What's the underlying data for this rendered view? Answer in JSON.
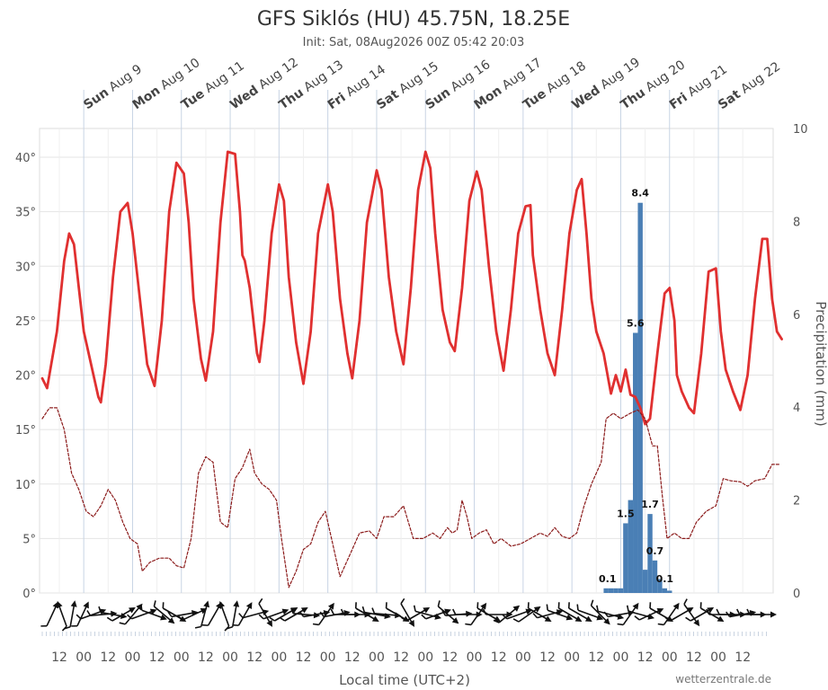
{
  "chart_data": {
    "type": "line",
    "title": "GFS Siklós (HU) 45.75N, 18.25E",
    "subtitle": "Init: Sat, 08Aug2026 00Z 05:42 20:03",
    "xlabel": "Local time (UTC+2)",
    "ylabel_right": "Precipitation (mm)",
    "credit": "wetterzentrale.de",
    "y_left": {
      "range": [
        0,
        42
      ],
      "ticks": [
        "0°",
        "5°",
        "10°",
        "15°",
        "20°",
        "25°",
        "30°",
        "35°",
        "40°"
      ]
    },
    "y_right": {
      "range": [
        0,
        10
      ],
      "ticks": [
        "0",
        "2",
        "4",
        "6",
        "8",
        "10"
      ]
    },
    "days": [
      {
        "dow": "Sun",
        "date": "Aug 9"
      },
      {
        "dow": "Mon",
        "date": "Aug 10"
      },
      {
        "dow": "Tue",
        "date": "Aug 11"
      },
      {
        "dow": "Wed",
        "date": "Aug 12"
      },
      {
        "dow": "Thu",
        "date": "Aug 13"
      },
      {
        "dow": "Fri",
        "date": "Aug 14"
      },
      {
        "dow": "Sat",
        "date": "Aug 15"
      },
      {
        "dow": "Sun",
        "date": "Aug 16"
      },
      {
        "dow": "Mon",
        "date": "Aug 17"
      },
      {
        "dow": "Tue",
        "date": "Aug 18"
      },
      {
        "dow": "Wed",
        "date": "Aug 19"
      },
      {
        "dow": "Thu",
        "date": "Aug 20"
      },
      {
        "dow": "Fri",
        "date": "Aug 21"
      },
      {
        "dow": "Sat",
        "date": "Aug 22"
      }
    ],
    "x_ticks": [
      "12",
      "00",
      "12",
      "00",
      "12",
      "00",
      "12",
      "00",
      "12",
      "00",
      "12",
      "00",
      "12",
      "00",
      "12",
      "00",
      "12",
      "00",
      "12",
      "00",
      "12",
      "00",
      "12",
      "00",
      "12",
      "00",
      "12",
      "00",
      "12"
    ],
    "series": [
      {
        "name": "Temperature",
        "color": "#e03030",
        "style": "solid",
        "points": [
          [
            0.0,
            19.7
          ],
          [
            0.1,
            18.8
          ],
          [
            0.3,
            24
          ],
          [
            0.45,
            30.5
          ],
          [
            0.55,
            33
          ],
          [
            0.65,
            32
          ],
          [
            0.75,
            28
          ],
          [
            0.85,
            24
          ],
          [
            1.0,
            21
          ],
          [
            1.15,
            18
          ],
          [
            1.2,
            17.5
          ],
          [
            1.3,
            21
          ],
          [
            1.45,
            29
          ],
          [
            1.6,
            35
          ],
          [
            1.75,
            35.8
          ],
          [
            1.85,
            33
          ],
          [
            2.0,
            27
          ],
          [
            2.15,
            21
          ],
          [
            2.3,
            19
          ],
          [
            2.45,
            25
          ],
          [
            2.6,
            35
          ],
          [
            2.75,
            39.5
          ],
          [
            2.9,
            38.5
          ],
          [
            3.0,
            34
          ],
          [
            3.1,
            27
          ],
          [
            3.25,
            21.5
          ],
          [
            3.35,
            19.5
          ],
          [
            3.5,
            24
          ],
          [
            3.65,
            34
          ],
          [
            3.8,
            40.5
          ],
          [
            3.95,
            40.3
          ],
          [
            4.05,
            35
          ],
          [
            4.1,
            31
          ],
          [
            4.15,
            30.5
          ],
          [
            4.25,
            28
          ],
          [
            4.4,
            22
          ],
          [
            4.45,
            21.2
          ],
          [
            4.55,
            25
          ],
          [
            4.7,
            33
          ],
          [
            4.85,
            37.5
          ],
          [
            4.95,
            36
          ],
          [
            5.05,
            29
          ],
          [
            5.2,
            23
          ],
          [
            5.35,
            19.2
          ],
          [
            5.5,
            24
          ],
          [
            5.65,
            33
          ],
          [
            5.85,
            37.5
          ],
          [
            5.95,
            35
          ],
          [
            6.1,
            27
          ],
          [
            6.25,
            22
          ],
          [
            6.35,
            19.7
          ],
          [
            6.5,
            25
          ],
          [
            6.65,
            34
          ],
          [
            6.85,
            38.8
          ],
          [
            6.95,
            37
          ],
          [
            7.1,
            29
          ],
          [
            7.25,
            24
          ],
          [
            7.4,
            21
          ],
          [
            7.55,
            28
          ],
          [
            7.7,
            37
          ],
          [
            7.85,
            40.5
          ],
          [
            7.95,
            39
          ],
          [
            8.05,
            33
          ],
          [
            8.2,
            26
          ],
          [
            8.35,
            23
          ],
          [
            8.45,
            22.2
          ],
          [
            8.6,
            28
          ],
          [
            8.75,
            36
          ],
          [
            8.9,
            38.7
          ],
          [
            9.0,
            37
          ],
          [
            9.15,
            30
          ],
          [
            9.3,
            24
          ],
          [
            9.45,
            20.4
          ],
          [
            9.6,
            26
          ],
          [
            9.75,
            33
          ],
          [
            9.9,
            35.5
          ],
          [
            10.0,
            35.6
          ],
          [
            10.05,
            31
          ],
          [
            10.2,
            26
          ],
          [
            10.35,
            22
          ],
          [
            10.5,
            20
          ],
          [
            10.65,
            26
          ],
          [
            10.8,
            33
          ],
          [
            10.95,
            37
          ],
          [
            11.05,
            38
          ],
          [
            11.15,
            33
          ],
          [
            11.25,
            27
          ],
          [
            11.35,
            24
          ],
          [
            11.5,
            22
          ],
          [
            11.6,
            19.5
          ],
          [
            11.65,
            18.3
          ],
          [
            11.75,
            20
          ],
          [
            11.85,
            18.5
          ],
          [
            11.95,
            20.5
          ],
          [
            12.05,
            18.2
          ],
          [
            12.15,
            18
          ],
          [
            12.25,
            17
          ],
          [
            12.35,
            15.5
          ],
          [
            12.45,
            16
          ],
          [
            12.6,
            22
          ],
          [
            12.75,
            27.5
          ],
          [
            12.85,
            28
          ],
          [
            12.95,
            25
          ],
          [
            13.0,
            20
          ],
          [
            13.1,
            18.5
          ],
          [
            13.25,
            17
          ],
          [
            13.35,
            16.5
          ],
          [
            13.5,
            22
          ],
          [
            13.65,
            29.5
          ],
          [
            13.8,
            29.8
          ],
          [
            13.9,
            24
          ],
          [
            14.0,
            20.5
          ],
          [
            14.15,
            18.5
          ],
          [
            14.3,
            16.8
          ],
          [
            14.45,
            20
          ],
          [
            14.6,
            27
          ],
          [
            14.75,
            32.5
          ],
          [
            14.85,
            32.5
          ],
          [
            14.95,
            27
          ],
          [
            15.05,
            24
          ],
          [
            15.15,
            23.3
          ]
        ]
      },
      {
        "name": "Dew point",
        "color": "#8b1a1a",
        "style": "dashed",
        "points": [
          [
            0.0,
            16
          ],
          [
            0.15,
            17
          ],
          [
            0.3,
            17
          ],
          [
            0.45,
            15
          ],
          [
            0.6,
            11
          ],
          [
            0.75,
            9.5
          ],
          [
            0.9,
            7.5
          ],
          [
            1.05,
            7
          ],
          [
            1.2,
            8
          ],
          [
            1.35,
            9.5
          ],
          [
            1.5,
            8.5
          ],
          [
            1.65,
            6.5
          ],
          [
            1.8,
            5
          ],
          [
            1.95,
            4.5
          ],
          [
            2.05,
            2
          ],
          [
            2.2,
            2.8
          ],
          [
            2.4,
            3.2
          ],
          [
            2.6,
            3.2
          ],
          [
            2.75,
            2.5
          ],
          [
            2.9,
            2.3
          ],
          [
            3.05,
            5
          ],
          [
            3.2,
            11
          ],
          [
            3.35,
            12.5
          ],
          [
            3.5,
            12
          ],
          [
            3.65,
            6.5
          ],
          [
            3.8,
            6
          ],
          [
            3.95,
            10.5
          ],
          [
            4.1,
            11.5
          ],
          [
            4.25,
            13.2
          ],
          [
            4.35,
            11
          ],
          [
            4.5,
            10
          ],
          [
            4.65,
            9.5
          ],
          [
            4.8,
            8.5
          ],
          [
            4.9,
            5
          ],
          [
            5.05,
            0.5
          ],
          [
            5.2,
            2
          ],
          [
            5.35,
            4
          ],
          [
            5.5,
            4.5
          ],
          [
            5.65,
            6.5
          ],
          [
            5.8,
            7.5
          ],
          [
            5.95,
            4.5
          ],
          [
            6.1,
            1.5
          ],
          [
            6.3,
            3.5
          ],
          [
            6.5,
            5.5
          ],
          [
            6.7,
            5.7
          ],
          [
            6.85,
            5
          ],
          [
            7.0,
            7
          ],
          [
            7.2,
            7
          ],
          [
            7.4,
            8
          ],
          [
            7.6,
            5
          ],
          [
            7.8,
            5
          ],
          [
            8.0,
            5.5
          ],
          [
            8.15,
            5
          ],
          [
            8.3,
            6
          ],
          [
            8.4,
            5.5
          ],
          [
            8.5,
            5.8
          ],
          [
            8.6,
            8.5
          ],
          [
            8.7,
            7
          ],
          [
            8.8,
            5
          ],
          [
            8.95,
            5.5
          ],
          [
            9.1,
            5.8
          ],
          [
            9.25,
            4.5
          ],
          [
            9.4,
            5
          ],
          [
            9.6,
            4.3
          ],
          [
            9.8,
            4.5
          ],
          [
            10.0,
            5
          ],
          [
            10.2,
            5.5
          ],
          [
            10.35,
            5.2
          ],
          [
            10.5,
            6
          ],
          [
            10.65,
            5.2
          ],
          [
            10.8,
            5
          ],
          [
            10.95,
            5.5
          ],
          [
            11.1,
            8
          ],
          [
            11.25,
            10
          ],
          [
            11.45,
            12
          ],
          [
            11.55,
            16
          ],
          [
            11.7,
            16.5
          ],
          [
            11.85,
            16
          ],
          [
            12.05,
            16.5
          ],
          [
            12.2,
            16.8
          ],
          [
            12.35,
            16
          ],
          [
            12.5,
            13.5
          ],
          [
            12.6,
            13.5
          ],
          [
            12.7,
            9
          ],
          [
            12.8,
            5
          ],
          [
            12.95,
            5.5
          ],
          [
            13.1,
            5
          ],
          [
            13.25,
            5
          ],
          [
            13.4,
            6.5
          ],
          [
            13.6,
            7.5
          ],
          [
            13.8,
            8
          ],
          [
            13.95,
            10.5
          ],
          [
            14.1,
            10.3
          ],
          [
            14.3,
            10.2
          ],
          [
            14.45,
            9.8
          ],
          [
            14.6,
            10.3
          ],
          [
            14.8,
            10.5
          ],
          [
            14.95,
            11.8
          ],
          [
            15.1,
            11.8
          ]
        ]
      }
    ],
    "precipitation": {
      "name": "Precipitation",
      "color": "#4a7fb5",
      "bars": [
        [
          11.55,
          0.1
        ],
        [
          11.65,
          0.1
        ],
        [
          11.75,
          0.1
        ],
        [
          11.85,
          0.1
        ],
        [
          11.95,
          1.5
        ],
        [
          12.05,
          2.0
        ],
        [
          12.15,
          5.6
        ],
        [
          12.25,
          8.4
        ],
        [
          12.35,
          0.5
        ],
        [
          12.45,
          1.7
        ],
        [
          12.55,
          0.7
        ],
        [
          12.65,
          0.3
        ],
        [
          12.75,
          0.1
        ],
        [
          12.85,
          0.05
        ]
      ],
      "labels": [
        {
          "x": 11.58,
          "v": "0.1"
        },
        {
          "x": 11.95,
          "v": "1.5"
        },
        {
          "x": 12.15,
          "v": "5.6"
        },
        {
          "x": 12.25,
          "v": "8.4"
        },
        {
          "x": 12.45,
          "v": "1.7"
        },
        {
          "x": 12.55,
          "v": "0.7"
        },
        {
          "x": 12.75,
          "v": "0.1"
        }
      ]
    },
    "wind_directions_deg": [
      205,
      160,
      190,
      205,
      250,
      265,
      280,
      240,
      220,
      250,
      290,
      310,
      300,
      260,
      245,
      195,
      210,
      160,
      190,
      210,
      255,
      330,
      250,
      240,
      240,
      275,
      260,
      215,
      260,
      270,
      270,
      300,
      280,
      275,
      300,
      330,
      240,
      285,
      250,
      310,
      265,
      270,
      215,
      300,
      270,
      230,
      250,
      235,
      300,
      255,
      290,
      300,
      300,
      290,
      315,
      285,
      260,
      215,
      285,
      245,
      300,
      215,
      240,
      325,
      240,
      300,
      270,
      270,
      260,
      270,
      270
    ]
  }
}
